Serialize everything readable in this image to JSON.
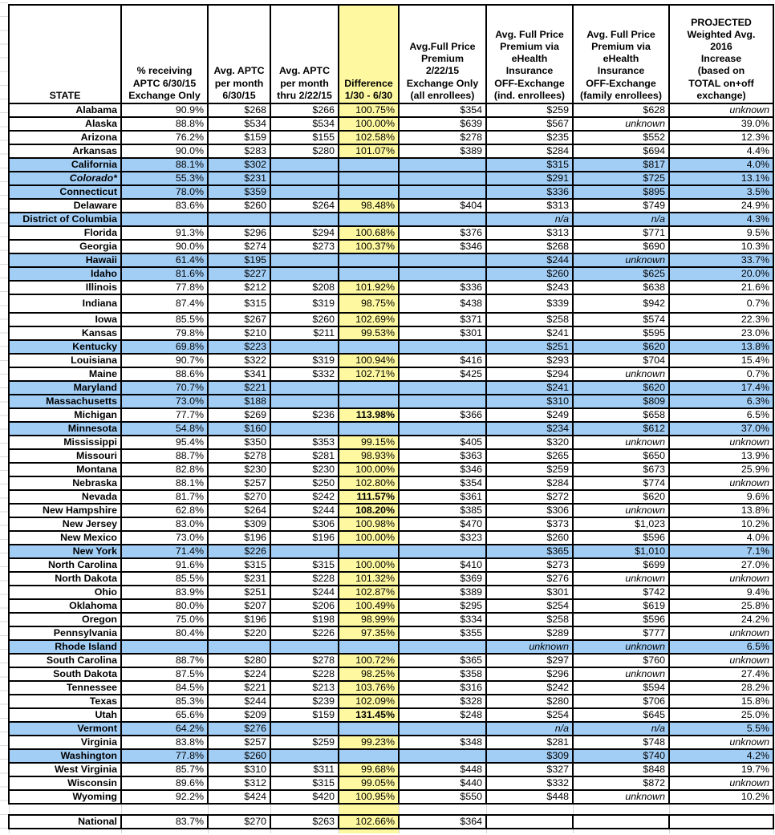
{
  "colors": {
    "highlight_yellow": "#fef9a0",
    "state_exchange_blue": "#a2cef6",
    "border_black": "#000000",
    "faint_grid_gray": "#d5d5d5"
  },
  "columns": [
    {
      "id": "state",
      "label": "STATE"
    },
    {
      "id": "pct_receiving_aptc",
      "label": "% receiving\nAPTC 6/30/15\nExchange Only"
    },
    {
      "id": "avg_aptc_per_month_63015",
      "label": "Avg. APTC\nper month\n6/30/15"
    },
    {
      "id": "avg_aptc_per_month_thru_22215",
      "label": "Avg. APTC\nper month\nthru 2/22/15"
    },
    {
      "id": "difference_130_630",
      "label": "Difference\n1/30 - 6/30"
    },
    {
      "id": "avg_full_price_premium_22215",
      "label": "Avg.Full Price\nPremium\n2/22/15\nExchange Only\n(all enrollees)"
    },
    {
      "id": "ehealth_off_exchange_individual",
      "label": "Avg. Full Price\nPremium via\neHealth\nInsurance\nOFF-Exchange\n(ind. enrollees)"
    },
    {
      "id": "ehealth_off_exchange_family",
      "label": "Avg. Full Price\nPremium via\neHealth\nInsurance\nOFF-Exchange\n(family enrollees)"
    },
    {
      "id": "projected_2016_increase",
      "label": "PROJECTED\nWeighted Avg.\n2016\nIncrease\n(based on\nTOTAL on+off\nexchange)"
    }
  ],
  "rows": [
    {
      "state": "Alabama",
      "values": [
        "90.9%",
        "$268",
        "$266",
        "100.75%",
        "$354",
        "$259",
        "$628",
        "unknown"
      ]
    },
    {
      "state": "Alaska",
      "values": [
        "88.8%",
        "$534",
        "$534",
        "100.00%",
        "$639",
        "$567",
        "unknown",
        "39.0%"
      ]
    },
    {
      "state": "Arizona",
      "values": [
        "76.2%",
        "$159",
        "$155",
        "102.58%",
        "$278",
        "$235",
        "$552",
        "12.3%"
      ]
    },
    {
      "state": "Arkansas",
      "values": [
        "90.0%",
        "$283",
        "$280",
        "101.07%",
        "$389",
        "$284",
        "$694",
        "4.4%"
      ]
    },
    {
      "state": "California",
      "blue": true,
      "values": [
        "88.1%",
        "$302",
        "",
        "",
        "",
        "$315",
        "$817",
        "4.0%"
      ]
    },
    {
      "state": "Colorado*",
      "blue": true,
      "state_italic": true,
      "values": [
        "55.3%",
        "$231",
        "",
        "",
        "",
        "$291",
        "$725",
        "13.1%"
      ]
    },
    {
      "state": "Connecticut",
      "blue": true,
      "values": [
        "78.0%",
        "$359",
        "",
        "",
        "",
        "$336",
        "$895",
        "3.5%"
      ]
    },
    {
      "state": "Delaware",
      "values": [
        "83.6%",
        "$260",
        "$264",
        "98.48%",
        "$404",
        "$313",
        "$749",
        "24.9%"
      ]
    },
    {
      "state": "District of Columbia",
      "blue": true,
      "values": [
        "",
        "",
        "",
        "",
        "",
        "n/a",
        "n/a",
        "4.3%"
      ]
    },
    {
      "state": "Florida",
      "values": [
        "91.3%",
        "$296",
        "$294",
        "100.68%",
        "$376",
        "$313",
        "$771",
        "9.5%"
      ]
    },
    {
      "state": "Georgia",
      "values": [
        "90.0%",
        "$274",
        "$273",
        "100.37%",
        "$346",
        "$268",
        "$690",
        "10.3%"
      ]
    },
    {
      "state": "Hawaii",
      "blue": true,
      "values": [
        "61.4%",
        "$195",
        "",
        "",
        "",
        "$244",
        "unknown",
        "33.7%"
      ]
    },
    {
      "state": "Idaho",
      "blue": true,
      "values": [
        "81.6%",
        "$227",
        "",
        "",
        "",
        "$260",
        "$625",
        "20.0%"
      ]
    },
    {
      "state": "Illinois",
      "values": [
        "77.8%",
        "$212",
        "$208",
        "101.92%",
        "$336",
        "$243",
        "$638",
        "21.6%"
      ]
    },
    {
      "state": "Indiana",
      "tall": true,
      "values": [
        "87.4%",
        "$315",
        "$319",
        "98.75%",
        "$438",
        "$339",
        "$942",
        "0.7%"
      ]
    },
    {
      "state": "Iowa",
      "values": [
        "85.5%",
        "$267",
        "$260",
        "102.69%",
        "$371",
        "$258",
        "$574",
        "22.3%"
      ]
    },
    {
      "state": "Kansas",
      "values": [
        "79.8%",
        "$210",
        "$211",
        "99.53%",
        "$301",
        "$241",
        "$595",
        "23.0%"
      ]
    },
    {
      "state": "Kentucky",
      "blue": true,
      "values": [
        "69.8%",
        "$223",
        "",
        "",
        "",
        "$251",
        "$620",
        "13.8%"
      ]
    },
    {
      "state": "Louisiana",
      "values": [
        "90.7%",
        "$322",
        "$319",
        "100.94%",
        "$416",
        "$293",
        "$704",
        "15.4%"
      ]
    },
    {
      "state": "Maine",
      "values": [
        "88.6%",
        "$341",
        "$332",
        "102.71%",
        "$425",
        "$294",
        "unknown",
        "0.7%"
      ]
    },
    {
      "state": "Maryland",
      "blue": true,
      "values": [
        "70.7%",
        "$221",
        "",
        "",
        "",
        "$241",
        "$620",
        "17.4%"
      ]
    },
    {
      "state": "Massachusetts",
      "blue": true,
      "values": [
        "73.0%",
        "$188",
        "",
        "",
        "",
        "$310",
        "$809",
        "6.3%"
      ]
    },
    {
      "state": "Michigan",
      "bold_diff": true,
      "values": [
        "77.7%",
        "$269",
        "$236",
        "113.98%",
        "$366",
        "$249",
        "$658",
        "6.5%"
      ]
    },
    {
      "state": "Minnesota",
      "blue": true,
      "values": [
        "54.8%",
        "$160",
        "",
        "",
        "",
        "$234",
        "$612",
        "37.0%"
      ]
    },
    {
      "state": "Mississippi",
      "values": [
        "95.4%",
        "$350",
        "$353",
        "99.15%",
        "$405",
        "$320",
        "unknown",
        "unknown"
      ]
    },
    {
      "state": "Missouri",
      "values": [
        "88.7%",
        "$278",
        "$281",
        "98.93%",
        "$363",
        "$265",
        "$650",
        "13.9%"
      ]
    },
    {
      "state": "Montana",
      "values": [
        "82.8%",
        "$230",
        "$230",
        "100.00%",
        "$346",
        "$259",
        "$673",
        "25.9%"
      ]
    },
    {
      "state": "Nebraska",
      "values": [
        "88.1%",
        "$257",
        "$250",
        "102.80%",
        "$354",
        "$284",
        "$774",
        "unknown"
      ]
    },
    {
      "state": "Nevada",
      "bold_diff": true,
      "values": [
        "81.7%",
        "$270",
        "$242",
        "111.57%",
        "$361",
        "$272",
        "$620",
        "9.6%"
      ]
    },
    {
      "state": "New Hampshire",
      "bold_diff": true,
      "values": [
        "62.8%",
        "$264",
        "$244",
        "108.20%",
        "$385",
        "$306",
        "unknown",
        "13.8%"
      ]
    },
    {
      "state": "New Jersey",
      "values": [
        "83.0%",
        "$309",
        "$306",
        "100.98%",
        "$470",
        "$373",
        "$1,023",
        "10.2%"
      ]
    },
    {
      "state": "New Mexico",
      "values": [
        "73.0%",
        "$196",
        "$196",
        "100.00%",
        "$323",
        "$260",
        "$596",
        "4.0%"
      ]
    },
    {
      "state": "New York",
      "blue": true,
      "values": [
        "71.4%",
        "$226",
        "",
        "",
        "",
        "$365",
        "$1,010",
        "7.1%"
      ]
    },
    {
      "state": "North Carolina",
      "values": [
        "91.6%",
        "$315",
        "$315",
        "100.00%",
        "$410",
        "$273",
        "$699",
        "27.0%"
      ]
    },
    {
      "state": "North Dakota",
      "values": [
        "85.5%",
        "$231",
        "$228",
        "101.32%",
        "$369",
        "$276",
        "unknown",
        "unknown"
      ]
    },
    {
      "state": "Ohio",
      "values": [
        "83.9%",
        "$251",
        "$244",
        "102.87%",
        "$389",
        "$301",
        "$742",
        "9.4%"
      ]
    },
    {
      "state": "Oklahoma",
      "values": [
        "80.0%",
        "$207",
        "$206",
        "100.49%",
        "$295",
        "$254",
        "$619",
        "25.8%"
      ]
    },
    {
      "state": "Oregon",
      "values": [
        "75.0%",
        "$196",
        "$198",
        "98.99%",
        "$334",
        "$258",
        "$596",
        "24.2%"
      ]
    },
    {
      "state": "Pennsylvania",
      "values": [
        "80.4%",
        "$220",
        "$226",
        "97.35%",
        "$355",
        "$289",
        "$777",
        "unknown"
      ]
    },
    {
      "state": "Rhode Island",
      "blue": true,
      "values": [
        "",
        "",
        "",
        "",
        "",
        "unknown",
        "unknown",
        "6.5%"
      ]
    },
    {
      "state": "South Carolina",
      "values": [
        "88.7%",
        "$280",
        "$278",
        "100.72%",
        "$365",
        "$297",
        "$760",
        "unknown"
      ]
    },
    {
      "state": "South Dakota",
      "values": [
        "87.5%",
        "$224",
        "$228",
        "98.25%",
        "$358",
        "$296",
        "unknown",
        "27.4%"
      ]
    },
    {
      "state": "Tennessee",
      "values": [
        "84.5%",
        "$221",
        "$213",
        "103.76%",
        "$316",
        "$242",
        "$594",
        "28.2%"
      ]
    },
    {
      "state": "Texas",
      "values": [
        "85.3%",
        "$244",
        "$239",
        "102.09%",
        "$328",
        "$280",
        "$706",
        "15.8%"
      ]
    },
    {
      "state": "Utah",
      "bold_diff": true,
      "values": [
        "65.6%",
        "$209",
        "$159",
        "131.45%",
        "$248",
        "$254",
        "$645",
        "25.0%"
      ]
    },
    {
      "state": "Vermont",
      "blue": true,
      "values": [
        "64.2%",
        "$276",
        "",
        "",
        "",
        "n/a",
        "n/a",
        "5.5%"
      ]
    },
    {
      "state": "Virginia",
      "values": [
        "83.8%",
        "$257",
        "$259",
        "99.23%",
        "$348",
        "$281",
        "$748",
        "unknown"
      ]
    },
    {
      "state": "Washington",
      "blue": true,
      "values": [
        "77.8%",
        "$260",
        "",
        "",
        "",
        "$309",
        "$740",
        "4.2%"
      ]
    },
    {
      "state": "West Virginia",
      "values": [
        "85.7%",
        "$310",
        "$311",
        "99.68%",
        "$448",
        "$327",
        "$848",
        "19.7%"
      ]
    },
    {
      "state": "Wisconsin",
      "values": [
        "89.6%",
        "$312",
        "$315",
        "99.05%",
        "$440",
        "$332",
        "$872",
        "unknown"
      ]
    },
    {
      "state": "Wyoming",
      "values": [
        "92.2%",
        "$424",
        "$420",
        "100.95%",
        "$550",
        "$448",
        "unknown",
        "10.2%"
      ]
    }
  ],
  "national_row": {
    "state": "National",
    "values": [
      "83.7%",
      "$270",
      "$263",
      "102.66%",
      "$364",
      "",
      "",
      ""
    ]
  }
}
